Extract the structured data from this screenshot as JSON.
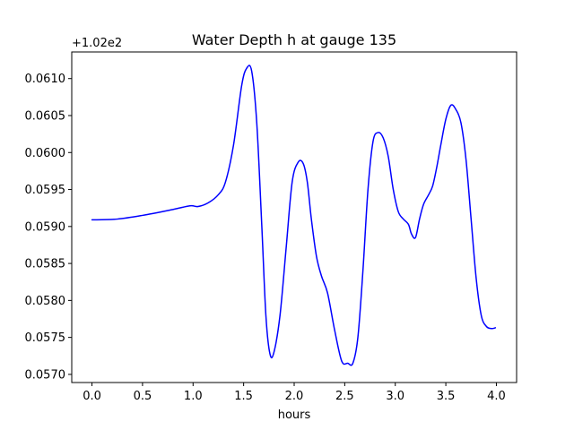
{
  "chart_data": {
    "type": "line",
    "title": "Water Depth h at gauge 135",
    "xlabel": "hours",
    "ylabel": "",
    "offset_label": "+1.02e2",
    "offset_value": 102,
    "xlim": [
      -0.2,
      4.2
    ],
    "ylim": [
      0.05689,
      0.06136
    ],
    "xticks": [
      0.0,
      0.5,
      1.0,
      1.5,
      2.0,
      2.5,
      3.0,
      3.5,
      4.0
    ],
    "xtick_labels": [
      "0.0",
      "0.5",
      "1.0",
      "1.5",
      "2.0",
      "2.5",
      "3.0",
      "3.5",
      "4.0"
    ],
    "yticks": [
      0.057,
      0.0575,
      0.058,
      0.0585,
      0.059,
      0.0595,
      0.06,
      0.0605,
      0.061
    ],
    "ytick_labels": [
      "0.0570",
      "0.0575",
      "0.0580",
      "0.0585",
      "0.0590",
      "0.0595",
      "0.0600",
      "0.0605",
      "0.0610"
    ],
    "grid": false,
    "line_color": "#0000ff",
    "series": [
      {
        "x": [
          0.0,
          0.25,
          0.5,
          0.8,
          0.97,
          1.05,
          1.15,
          1.25,
          1.32,
          1.4,
          1.48,
          1.53,
          1.58,
          1.63,
          1.68,
          1.72,
          1.76,
          1.8,
          1.86,
          1.92,
          1.98,
          2.04,
          2.09,
          2.13,
          2.17,
          2.22,
          2.27,
          2.33,
          2.4,
          2.47,
          2.53,
          2.58,
          2.63,
          2.68,
          2.73,
          2.78,
          2.83,
          2.88,
          2.93,
          2.98,
          3.03,
          3.08,
          3.13,
          3.16,
          3.2,
          3.24,
          3.28,
          3.33,
          3.37,
          3.41,
          3.45,
          3.5,
          3.55,
          3.6,
          3.65,
          3.7,
          3.75,
          3.8,
          3.85,
          3.9,
          3.95,
          3.99
        ],
        "y": [
          0.05909,
          0.0591,
          0.05915,
          0.05923,
          0.05928,
          0.05927,
          0.05932,
          0.05943,
          0.0596,
          0.0601,
          0.0609,
          0.06114,
          0.0611,
          0.0604,
          0.059,
          0.0578,
          0.05728,
          0.0573,
          0.0578,
          0.0587,
          0.0596,
          0.05987,
          0.05985,
          0.0596,
          0.0591,
          0.0586,
          0.05833,
          0.0581,
          0.0576,
          0.05718,
          0.05715,
          0.05715,
          0.0575,
          0.0584,
          0.0595,
          0.06015,
          0.06027,
          0.0602,
          0.05995,
          0.0595,
          0.0592,
          0.0591,
          0.05903,
          0.0589,
          0.05885,
          0.0591,
          0.0593,
          0.05943,
          0.05955,
          0.0598,
          0.0601,
          0.06045,
          0.06064,
          0.06058,
          0.0604,
          0.0599,
          0.0591,
          0.0583,
          0.0578,
          0.05765,
          0.05762,
          0.05763
        ]
      }
    ]
  }
}
